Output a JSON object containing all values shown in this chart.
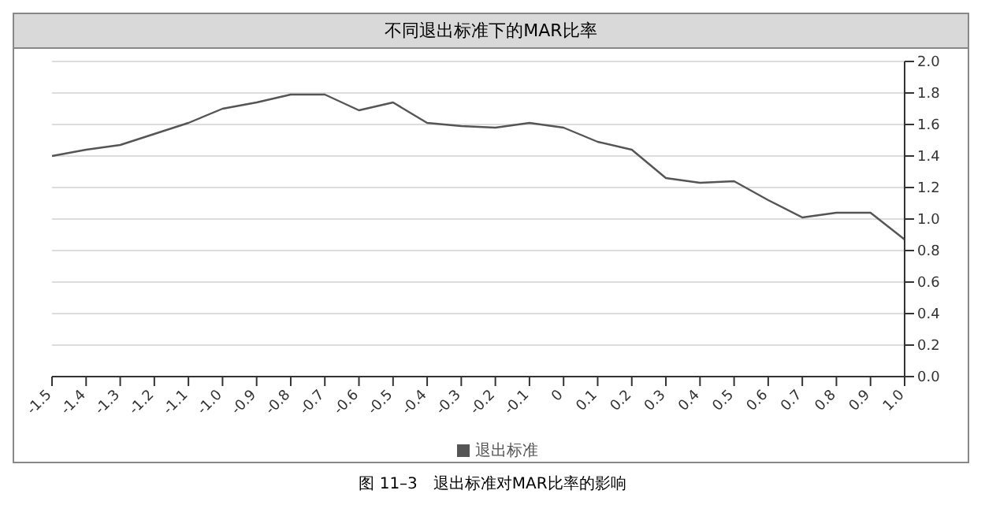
{
  "chart_data": {
    "type": "line",
    "title": "不同退出标准下的MAR比率",
    "categories": [
      "-1.5",
      "-1.4",
      "-1.3",
      "-1.2",
      "-1.1",
      "-1.0",
      "-0.9",
      "-0.8",
      "-0.7",
      "-0.6",
      "-0.5",
      "-0.4",
      "-0.3",
      "-0.2",
      "-0.1",
      "0",
      "0.1",
      "0.2",
      "0.3",
      "0.4",
      "0.5",
      "0.6",
      "0.7",
      "0.8",
      "0.9",
      "1.0"
    ],
    "series": [
      {
        "name": "退出标准",
        "color": "#555555",
        "values": [
          1.4,
          1.44,
          1.47,
          1.54,
          1.61,
          1.7,
          1.74,
          1.79,
          1.79,
          1.69,
          1.74,
          1.61,
          1.59,
          1.58,
          1.61,
          1.58,
          1.49,
          1.44,
          1.26,
          1.23,
          1.24,
          1.12,
          1.01,
          1.04,
          1.04,
          0.87
        ]
      }
    ],
    "ylim": [
      0,
      2
    ],
    "yticks": [
      {
        "value": 0,
        "label": "0.0"
      },
      {
        "value": 0.2,
        "label": "0.2"
      },
      {
        "value": 0.4,
        "label": "0.4"
      },
      {
        "value": 0.6,
        "label": "0.6"
      },
      {
        "value": 0.8,
        "label": "0.8"
      },
      {
        "value": 1,
        "label": "1.0"
      },
      {
        "value": 1.2,
        "label": "1.2"
      },
      {
        "value": 1.4,
        "label": "1.4"
      },
      {
        "value": 1.6,
        "label": "1.6"
      },
      {
        "value": 1.8,
        "label": "1.8"
      },
      {
        "value": 2,
        "label": "2.0"
      }
    ],
    "grid": "y",
    "legend": "bottom",
    "marker": "none",
    "line_style": "solid",
    "annotations": [
      "图 11–3　退出标准对MAR比率的影响"
    ]
  }
}
